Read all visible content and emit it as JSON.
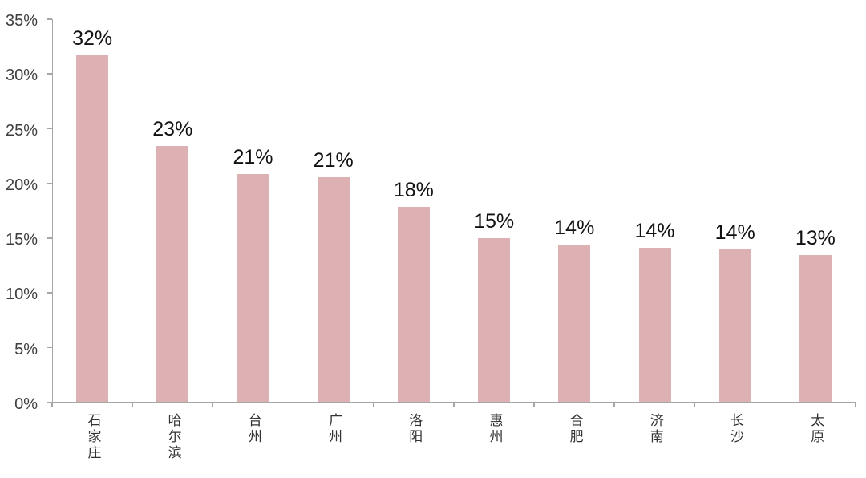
{
  "chart_data": {
    "type": "bar",
    "categories": [
      "石家庄",
      "哈尔滨",
      "台州",
      "广州",
      "洛阳",
      "惠州",
      "合肥",
      "济南",
      "长沙",
      "太原"
    ],
    "values": [
      31.7,
      23.4,
      20.9,
      20.6,
      17.9,
      15.0,
      14.4,
      14.1,
      14.0,
      13.5
    ],
    "value_labels": [
      "32%",
      "23%",
      "21%",
      "21%",
      "18%",
      "15%",
      "14%",
      "14%",
      "14%",
      "13%"
    ],
    "ylim": [
      0,
      35
    ],
    "ytick_step": 5,
    "ytick_labels": [
      "0%",
      "5%",
      "10%",
      "15%",
      "20%",
      "25%",
      "30%",
      "35%"
    ],
    "grid": false,
    "legend": "none",
    "colors": {
      "bar_fill": "#ddb1b4",
      "axis_line": "#a6a6a6",
      "axis_tick_label": "#3f3f3f",
      "value_label": "#111111",
      "category_label": "#333333",
      "background": "#ffffff"
    }
  }
}
